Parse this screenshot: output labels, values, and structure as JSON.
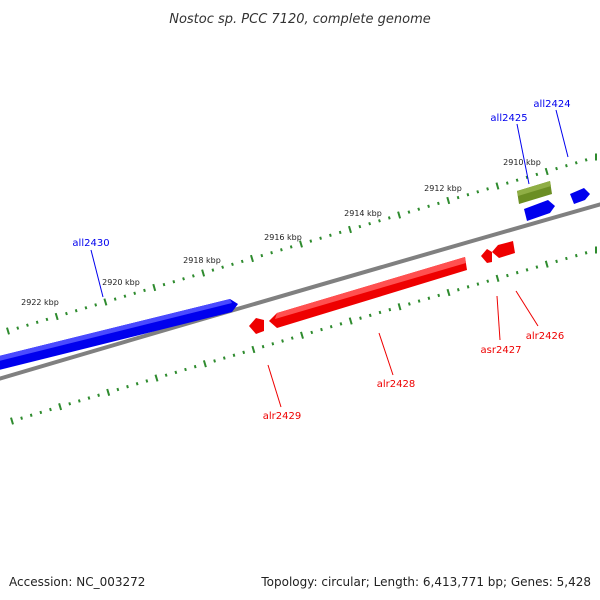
{
  "title": "Nostoc sp. PCC 7120, complete genome",
  "footer": {
    "accession": "Accession: NC_003272",
    "summary": "Topology: circular; Length: 6,413,771 bp; Genes: 5,428"
  },
  "colors": {
    "minus_strand": "#0000ee",
    "plus_strand": "#ee0000",
    "other_feature": "#6b8e23",
    "backbone": "#808080",
    "tick": "#2e8b2e"
  },
  "scale_labels": [
    "2910 kbp",
    "2912 kbp",
    "2914 kbp",
    "2916 kbp",
    "2918 kbp",
    "2920 kbp",
    "2922 kbp"
  ],
  "genes": [
    {
      "name": "all2424",
      "strand": "minus"
    },
    {
      "name": "all2425",
      "strand": "minus"
    },
    {
      "name": "all2430",
      "strand": "minus"
    },
    {
      "name": "alr2426",
      "strand": "plus"
    },
    {
      "name": "asr2427",
      "strand": "plus"
    },
    {
      "name": "alr2428",
      "strand": "plus"
    },
    {
      "name": "alr2429",
      "strand": "plus"
    }
  ]
}
